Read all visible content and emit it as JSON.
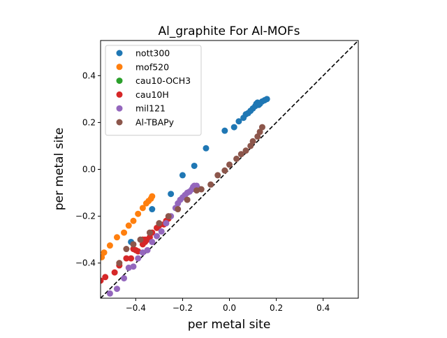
{
  "chart_data": {
    "type": "scatter",
    "title": "Al_graphite For Al-MOFs",
    "xlabel": "per metal site",
    "ylabel": "per metal site",
    "xlim": [
      -0.55,
      0.55
    ],
    "ylim": [
      -0.55,
      0.55
    ],
    "xticks": [
      -0.4,
      -0.2,
      0.0,
      0.2,
      0.4
    ],
    "xtick_labels": [
      "−0.4",
      "−0.2",
      "0.0",
      "0.2",
      "0.4"
    ],
    "yticks": [
      -0.4,
      -0.2,
      0.0,
      0.2,
      0.4
    ],
    "ytick_labels": [
      "−0.4",
      "−0.2",
      "0.0",
      "0.2",
      "0.4"
    ],
    "grid": false,
    "legend_position": "top-left",
    "reference_line": {
      "style": "dashed",
      "color": "#000000",
      "from": [
        -0.55,
        -0.55
      ],
      "to": [
        0.55,
        0.55
      ]
    },
    "series": [
      {
        "name": "nott300",
        "color": "#1f77b4",
        "x": [
          -0.42,
          -0.33,
          -0.25,
          -0.2,
          -0.15,
          -0.1,
          -0.02,
          0.02,
          0.04,
          0.06,
          0.07,
          0.08,
          0.09,
          0.1,
          0.11,
          0.115,
          0.12,
          0.125,
          0.13,
          0.14,
          0.15,
          0.16
        ],
        "y": [
          -0.31,
          -0.17,
          -0.105,
          -0.025,
          0.015,
          0.09,
          0.165,
          0.18,
          0.205,
          0.22,
          0.235,
          0.24,
          0.25,
          0.26,
          0.27,
          0.28,
          0.285,
          0.275,
          0.28,
          0.29,
          0.295,
          0.3
        ]
      },
      {
        "name": "mof520",
        "color": "#ff7f0e",
        "x": [
          -0.545,
          -0.535,
          -0.51,
          -0.48,
          -0.45,
          -0.43,
          -0.41,
          -0.39,
          -0.37,
          -0.355,
          -0.345,
          -0.335,
          -0.33
        ],
        "y": [
          -0.375,
          -0.355,
          -0.325,
          -0.29,
          -0.27,
          -0.24,
          -0.22,
          -0.19,
          -0.165,
          -0.145,
          -0.135,
          -0.125,
          -0.115
        ]
      },
      {
        "name": "cau10-OCH3",
        "color": "#2ca02c",
        "x": [],
        "y": []
      },
      {
        "name": "cau10H",
        "color": "#d62728",
        "x": [
          -0.55,
          -0.53,
          -0.49,
          -0.47,
          -0.44,
          -0.42,
          -0.41,
          -0.4,
          -0.39,
          -0.37,
          -0.36,
          -0.34,
          -0.33,
          -0.31,
          -0.3,
          -0.28,
          -0.27,
          -0.26,
          -0.37,
          -0.36,
          -0.35
        ],
        "y": [
          -0.475,
          -0.46,
          -0.44,
          -0.41,
          -0.38,
          -0.38,
          -0.34,
          -0.345,
          -0.35,
          -0.32,
          -0.3,
          -0.29,
          -0.27,
          -0.25,
          -0.24,
          -0.235,
          -0.22,
          -0.21,
          -0.3,
          -0.31,
          -0.3
        ]
      },
      {
        "name": "mil121",
        "color": "#9467bd",
        "x": [
          -0.51,
          -0.48,
          -0.45,
          -0.43,
          -0.41,
          -0.39,
          -0.37,
          -0.35,
          -0.33,
          -0.31,
          -0.29,
          -0.27,
          -0.25,
          -0.23,
          -0.22,
          -0.21,
          -0.2,
          -0.19,
          -0.18,
          -0.17,
          -0.16,
          -0.155,
          -0.15,
          -0.145,
          -0.14,
          -0.135
        ],
        "y": [
          -0.53,
          -0.51,
          -0.465,
          -0.42,
          -0.415,
          -0.38,
          -0.355,
          -0.345,
          -0.31,
          -0.285,
          -0.265,
          -0.23,
          -0.2,
          -0.165,
          -0.145,
          -0.13,
          -0.12,
          -0.11,
          -0.1,
          -0.095,
          -0.085,
          -0.075,
          -0.07,
          -0.075,
          -0.07,
          -0.08
        ]
      },
      {
        "name": "Al-TBAPy",
        "color": "#8c564b",
        "x": [
          -0.47,
          -0.44,
          -0.41,
          -0.38,
          -0.34,
          -0.3,
          -0.26,
          -0.22,
          -0.18,
          -0.14,
          -0.12,
          -0.08,
          -0.05,
          -0.02,
          0.0,
          0.03,
          0.05,
          0.07,
          0.09,
          0.1,
          0.12,
          0.13,
          0.14
        ],
        "y": [
          -0.4,
          -0.34,
          -0.32,
          -0.3,
          -0.27,
          -0.23,
          -0.2,
          -0.17,
          -0.13,
          -0.09,
          -0.085,
          -0.065,
          -0.025,
          -0.005,
          0.02,
          0.045,
          0.065,
          0.08,
          0.1,
          0.12,
          0.14,
          0.16,
          0.18
        ]
      }
    ]
  }
}
